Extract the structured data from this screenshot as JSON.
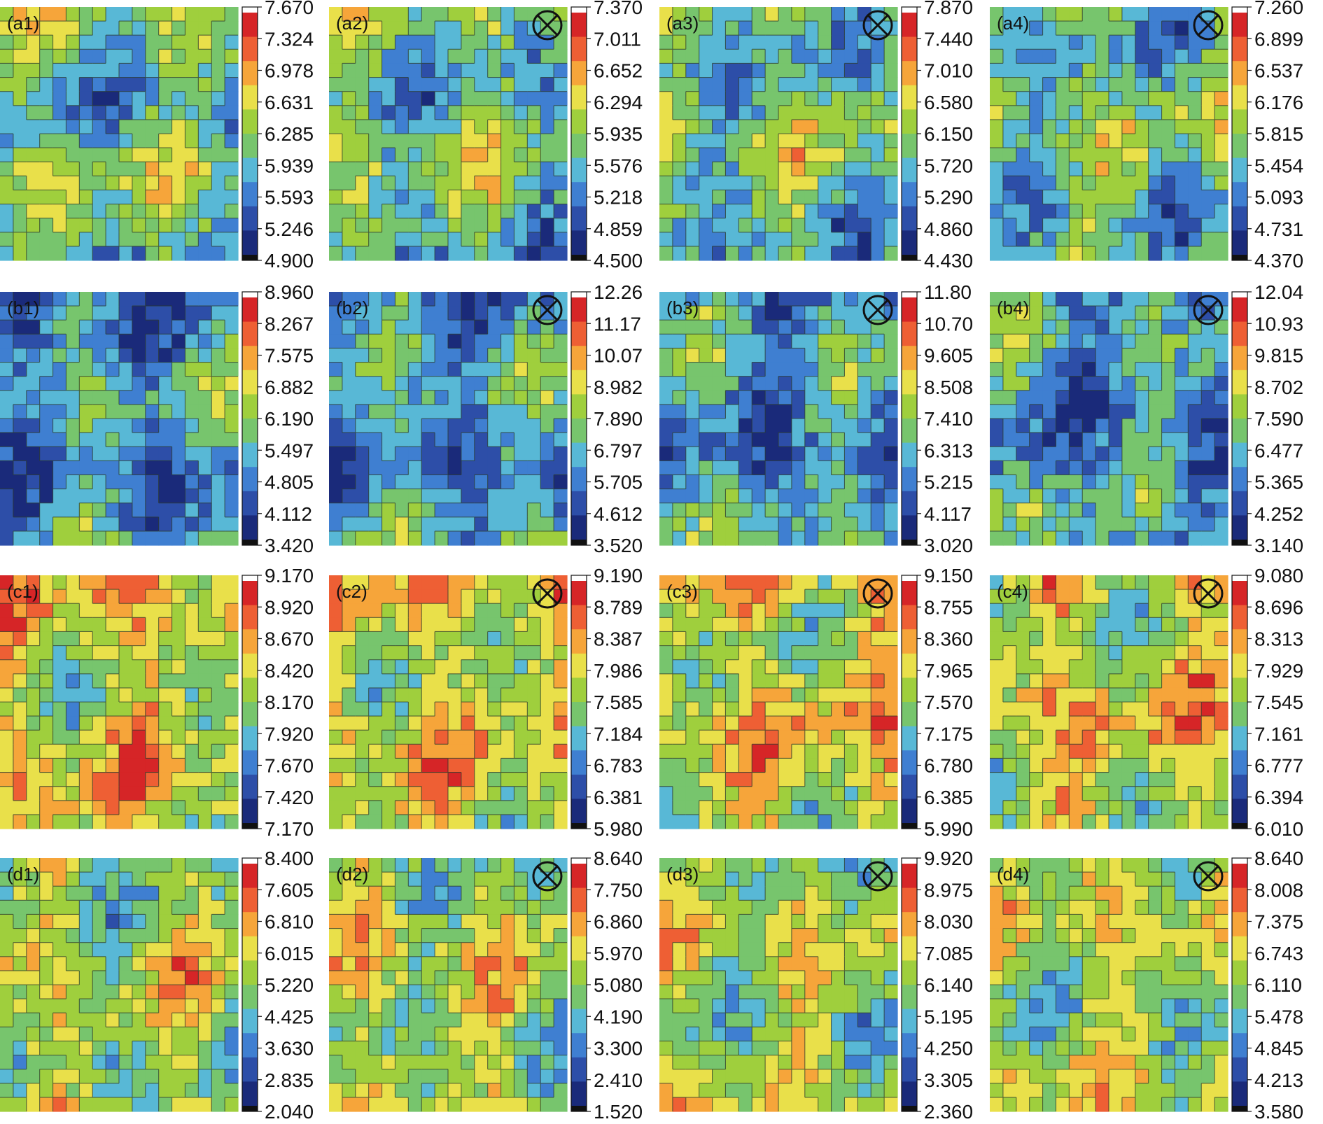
{
  "figure": {
    "grid": {
      "rows": [
        "a",
        "b",
        "c",
        "d"
      ],
      "columns": [
        "1",
        "2",
        "3",
        "4"
      ]
    },
    "contour_symbol": "circle-x",
    "colormap": [
      "#1a2a7a",
      "#2d4ea8",
      "#3f7fd1",
      "#58b8d6",
      "#77c56d",
      "#9fcf3d",
      "#e9e04a",
      "#f6a53a",
      "#ee5f34",
      "#d62527"
    ],
    "colors": {
      "background": "#ffffff",
      "contour_line": "#2b3a2b",
      "frame": "#111111"
    }
  },
  "chart_data": [
    {
      "type": "heatmap",
      "panel_label": "(a1)",
      "has_marker": false,
      "colorbar_ticks": [
        "7.670",
        "7.324",
        "6.978",
        "6.631",
        "6.285",
        "5.939",
        "5.593",
        "5.246",
        "4.900"
      ],
      "colorbar_range": [
        4.9,
        7.67
      ]
    },
    {
      "type": "heatmap",
      "panel_label": "(a2)",
      "has_marker": true,
      "colorbar_ticks": [
        "7.370",
        "7.011",
        "6.652",
        "6.294",
        "5.935",
        "5.576",
        "5.218",
        "4.859",
        "4.500"
      ],
      "colorbar_range": [
        4.5,
        7.37
      ]
    },
    {
      "type": "heatmap",
      "panel_label": "(a3)",
      "has_marker": true,
      "colorbar_ticks": [
        "7.870",
        "7.440",
        "7.010",
        "6.580",
        "6.150",
        "5.720",
        "5.290",
        "4.860",
        "4.430"
      ],
      "colorbar_range": [
        4.43,
        7.87
      ]
    },
    {
      "type": "heatmap",
      "panel_label": "(a4)",
      "has_marker": true,
      "colorbar_ticks": [
        "7.260",
        "6.899",
        "6.537",
        "6.176",
        "5.815",
        "5.454",
        "5.093",
        "4.731",
        "4.370"
      ],
      "colorbar_range": [
        4.37,
        7.26
      ]
    },
    {
      "type": "heatmap",
      "panel_label": "(b1)",
      "has_marker": false,
      "colorbar_ticks": [
        "8.960",
        "8.267",
        "7.575",
        "6.882",
        "6.190",
        "5.497",
        "4.805",
        "4.112",
        "3.420"
      ],
      "colorbar_range": [
        3.42,
        8.96
      ]
    },
    {
      "type": "heatmap",
      "panel_label": "(b2)",
      "has_marker": true,
      "colorbar_ticks": [
        "12.26",
        "11.17",
        "10.07",
        "8.982",
        "7.890",
        "6.797",
        "5.705",
        "4.612",
        "3.520"
      ],
      "colorbar_range": [
        3.52,
        12.26
      ]
    },
    {
      "type": "heatmap",
      "panel_label": "(b3)",
      "has_marker": true,
      "colorbar_ticks": [
        "11.80",
        "10.70",
        "9.605",
        "8.508",
        "7.410",
        "6.313",
        "5.215",
        "4.117",
        "3.020"
      ],
      "colorbar_range": [
        3.02,
        11.8
      ]
    },
    {
      "type": "heatmap",
      "panel_label": "(b4)",
      "has_marker": true,
      "colorbar_ticks": [
        "12.04",
        "10.93",
        "9.815",
        "8.702",
        "7.590",
        "6.477",
        "5.365",
        "4.252",
        "3.140"
      ],
      "colorbar_range": [
        3.14,
        12.04
      ]
    },
    {
      "type": "heatmap",
      "panel_label": "(c1)",
      "has_marker": false,
      "colorbar_ticks": [
        "9.170",
        "8.920",
        "8.670",
        "8.420",
        "8.170",
        "7.920",
        "7.670",
        "7.420",
        "7.170"
      ],
      "colorbar_range": [
        7.17,
        9.17
      ]
    },
    {
      "type": "heatmap",
      "panel_label": "(c2)",
      "has_marker": true,
      "colorbar_ticks": [
        "9.190",
        "8.789",
        "8.387",
        "7.986",
        "7.585",
        "7.184",
        "6.783",
        "6.381",
        "5.980"
      ],
      "colorbar_range": [
        5.98,
        9.19
      ]
    },
    {
      "type": "heatmap",
      "panel_label": "(c3)",
      "has_marker": true,
      "colorbar_ticks": [
        "9.150",
        "8.755",
        "8.360",
        "7.965",
        "7.570",
        "7.175",
        "6.780",
        "6.385",
        "5.990"
      ],
      "colorbar_range": [
        5.99,
        9.15
      ]
    },
    {
      "type": "heatmap",
      "panel_label": "(c4)",
      "has_marker": true,
      "colorbar_ticks": [
        "9.080",
        "8.696",
        "8.313",
        "7.929",
        "7.545",
        "7.161",
        "6.777",
        "6.394",
        "6.010"
      ],
      "colorbar_range": [
        6.01,
        9.08
      ]
    },
    {
      "type": "heatmap",
      "panel_label": "(d1)",
      "has_marker": false,
      "colorbar_ticks": [
        "8.400",
        "7.605",
        "6.810",
        "6.015",
        "5.220",
        "4.425",
        "3.630",
        "2.835",
        "2.040"
      ],
      "colorbar_range": [
        2.04,
        8.4
      ]
    },
    {
      "type": "heatmap",
      "panel_label": "(d2)",
      "has_marker": true,
      "colorbar_ticks": [
        "8.640",
        "7.750",
        "6.860",
        "5.970",
        "5.080",
        "4.190",
        "3.300",
        "2.410",
        "1.520"
      ],
      "colorbar_range": [
        1.52,
        8.64
      ]
    },
    {
      "type": "heatmap",
      "panel_label": "(d3)",
      "has_marker": true,
      "colorbar_ticks": [
        "9.920",
        "8.975",
        "8.030",
        "7.085",
        "6.140",
        "5.195",
        "4.250",
        "3.305",
        "2.360"
      ],
      "colorbar_range": [
        2.36,
        9.92
      ]
    },
    {
      "type": "heatmap",
      "panel_label": "(d4)",
      "has_marker": true,
      "colorbar_ticks": [
        "8.640",
        "8.008",
        "7.375",
        "6.743",
        "6.110",
        "5.478",
        "4.845",
        "4.213",
        "3.580"
      ],
      "colorbar_range": [
        3.58,
        8.64
      ]
    }
  ]
}
